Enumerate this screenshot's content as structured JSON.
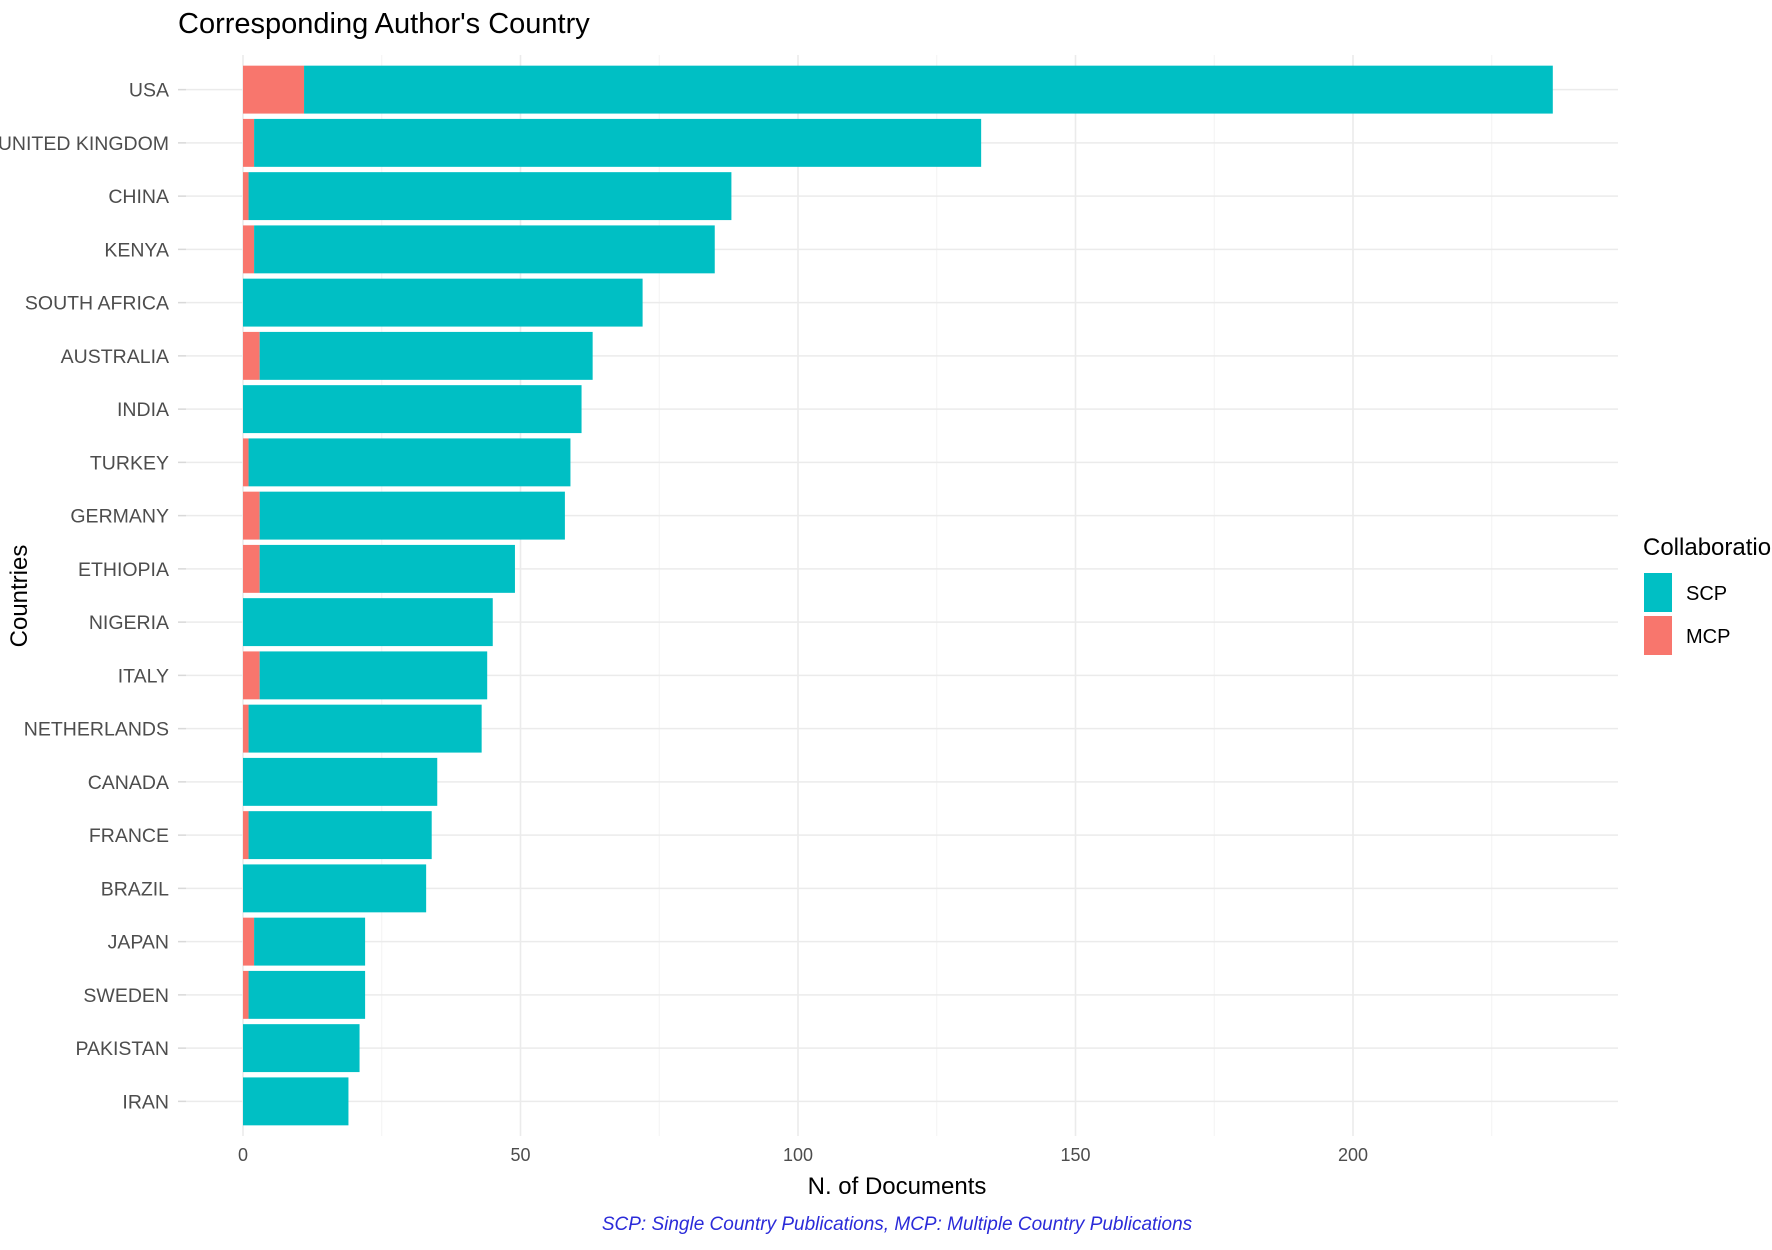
{
  "chart_data": {
    "type": "bar",
    "orientation": "horizontal",
    "stacked": true,
    "title": "Corresponding Author's Country",
    "xlabel": "N. of Documents",
    "ylabel": "Countries",
    "caption": "SCP: Single Country Publications, MCP: Multiple Country Publications",
    "xlim": [
      0,
      248
    ],
    "xticks": [
      0,
      50,
      100,
      150,
      200
    ],
    "grid": true,
    "legend": {
      "title": "Collaboration",
      "position": "right"
    },
    "categories": [
      "USA",
      "UNITED KINGDOM",
      "CHINA",
      "KENYA",
      "SOUTH AFRICA",
      "AUSTRALIA",
      "INDIA",
      "TURKEY",
      "GERMANY",
      "ETHIOPIA",
      "NIGERIA",
      "ITALY",
      "NETHERLANDS",
      "CANADA",
      "FRANCE",
      "BRAZIL",
      "JAPAN",
      "SWEDEN",
      "PAKISTAN",
      "IRAN"
    ],
    "series": [
      {
        "name": "SCP",
        "color": "#00BFC4",
        "values": [
          225,
          131,
          87,
          83,
          72,
          60,
          61,
          58,
          55,
          46,
          45,
          41,
          42,
          35,
          33,
          33,
          20,
          21,
          21,
          19
        ]
      },
      {
        "name": "MCP",
        "color": "#F8766D",
        "values": [
          11,
          2,
          1,
          2,
          0,
          3,
          0,
          1,
          3,
          3,
          0,
          3,
          1,
          0,
          1,
          0,
          2,
          1,
          0,
          0
        ]
      }
    ]
  }
}
